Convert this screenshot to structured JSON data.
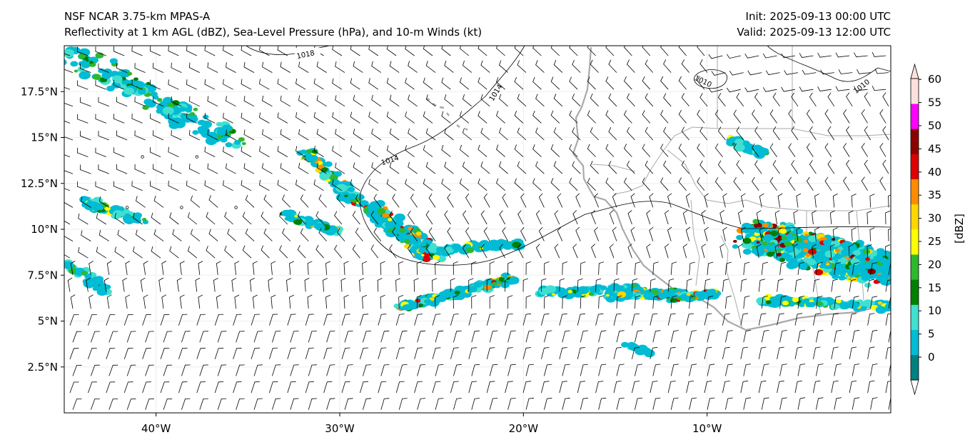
{
  "header": {
    "model": "NSF NCAR 3.75-km MPAS-A",
    "fields": "Reflectivity at 1 km AGL (dBZ), Sea-Level Pressure (hPa), and 10-m Winds (kt)",
    "init": "Init: 2025-09-13 00:00 UTC",
    "valid": "Valid: 2025-09-13 12:00 UTC"
  },
  "map": {
    "lon_range": [
      -45,
      0
    ],
    "lat_range": [
      0,
      20
    ],
    "lat_ticks": [
      {
        "value": 17.5,
        "label": "17.5°N"
      },
      {
        "value": 15,
        "label": "15°N"
      },
      {
        "value": 12.5,
        "label": "12.5°N"
      },
      {
        "value": 10,
        "label": "10°N"
      },
      {
        "value": 7.5,
        "label": "7.5°N"
      },
      {
        "value": 5,
        "label": "5°N"
      },
      {
        "value": 2.5,
        "label": "2.5°N"
      }
    ],
    "lon_ticks": [
      {
        "value": -40,
        "label": "40°W"
      },
      {
        "value": -30,
        "label": "30°W"
      },
      {
        "value": -20,
        "label": "20°W"
      },
      {
        "value": -10,
        "label": "10°W"
      }
    ],
    "isobar_labels": [
      "1018",
      "1014",
      "1014",
      "1010",
      "1010"
    ],
    "coastline_color": "#a9a9a9",
    "isobar_color": "#000000"
  },
  "colorbar": {
    "unit_label": "[dBZ]",
    "ticks": [
      "0",
      "5",
      "10",
      "15",
      "20",
      "25",
      "30",
      "35",
      "40",
      "45",
      "50",
      "55",
      "60"
    ],
    "colors": [
      "#008080",
      "#00bcd4",
      "#40e0d0",
      "#008000",
      "#2eb82e",
      "#ffff00",
      "#ffd700",
      "#ff8c00",
      "#dd0000",
      "#8b0000",
      "#ff00ff",
      "#fde0dc"
    ]
  }
}
